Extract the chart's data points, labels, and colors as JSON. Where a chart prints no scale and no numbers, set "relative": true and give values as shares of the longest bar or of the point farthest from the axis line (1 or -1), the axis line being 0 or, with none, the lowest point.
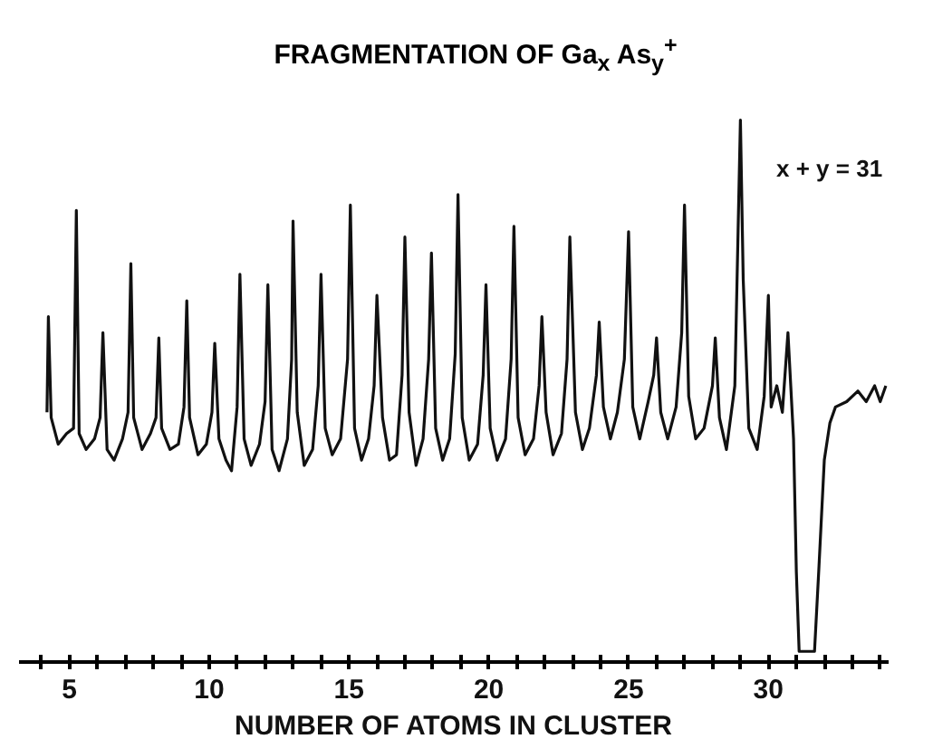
{
  "chart_data": {
    "type": "line",
    "title": "FRAGMENTATION OF Ga$_{x}$ As$_{y}$$^{+}$",
    "xlabel": "NUMBER OF ATOMS IN CLUSTER",
    "annotations": [
      "x + y = 31"
    ],
    "relative": true,
    "grid": false,
    "marker": "none",
    "line_style": "solid",
    "xlim": [
      3.2,
      34.3
    ],
    "xticks": [
      {
        "value": 4,
        "label": null
      },
      5,
      {
        "value": 6,
        "label": null
      },
      {
        "value": 7,
        "label": null
      },
      {
        "value": 8,
        "label": null
      },
      {
        "value": 9,
        "label": null
      },
      10,
      {
        "value": 11,
        "label": null
      },
      {
        "value": 12,
        "label": null
      },
      {
        "value": 13,
        "label": null
      },
      {
        "value": 14,
        "label": null
      },
      15,
      {
        "value": 16,
        "label": null
      },
      {
        "value": 17,
        "label": null
      },
      {
        "value": 18,
        "label": null
      },
      {
        "value": 19,
        "label": null
      },
      20,
      {
        "value": 21,
        "label": null
      },
      {
        "value": 22,
        "label": null
      },
      {
        "value": 23,
        "label": null
      },
      {
        "value": 24,
        "label": null
      },
      25,
      {
        "value": 26,
        "label": null
      },
      {
        "value": 27,
        "label": null
      },
      {
        "value": 28,
        "label": null
      },
      {
        "value": 29,
        "label": null
      },
      30,
      {
        "value": 31,
        "label": null
      },
      {
        "value": 32,
        "label": null
      },
      {
        "value": 33,
        "label": null
      },
      {
        "value": 34,
        "label": null
      }
    ],
    "series": [
      {
        "color": "#111111",
        "x": [
          4.2,
          4.25,
          4.35,
          4.6,
          4.9,
          5.15,
          5.25,
          5.35,
          5.6,
          5.9,
          6.1,
          6.2,
          6.35,
          6.6,
          6.9,
          7.1,
          7.2,
          7.3,
          7.6,
          7.9,
          8.1,
          8.2,
          8.3,
          8.6,
          8.9,
          9.1,
          9.2,
          9.3,
          9.6,
          9.9,
          10.1,
          10.2,
          10.35,
          10.6,
          10.8,
          11.0,
          11.1,
          11.25,
          11.5,
          11.8,
          12.0,
          12.1,
          12.25,
          12.5,
          12.8,
          12.95,
          13.0,
          13.15,
          13.4,
          13.7,
          13.9,
          14.0,
          14.15,
          14.4,
          14.7,
          14.95,
          15.05,
          15.2,
          15.45,
          15.7,
          15.9,
          16.0,
          16.2,
          16.45,
          16.7,
          16.9,
          17.0,
          17.15,
          17.4,
          17.65,
          17.85,
          17.95,
          18.1,
          18.35,
          18.6,
          18.8,
          18.9,
          19.05,
          19.3,
          19.6,
          19.8,
          19.9,
          20.05,
          20.3,
          20.6,
          20.8,
          20.9,
          21.05,
          21.3,
          21.6,
          21.8,
          21.9,
          22.05,
          22.3,
          22.6,
          22.8,
          22.9,
          23.1,
          23.35,
          23.6,
          23.85,
          23.95,
          24.1,
          24.35,
          24.6,
          24.85,
          25.0,
          25.15,
          25.4,
          25.7,
          25.9,
          26.0,
          26.15,
          26.4,
          26.7,
          26.9,
          27.0,
          27.15,
          27.4,
          27.7,
          28.0,
          28.1,
          28.25,
          28.5,
          28.8,
          28.9,
          29.0,
          29.1,
          29.3,
          29.6,
          29.85,
          30.0,
          30.1,
          30.3,
          30.5,
          30.7,
          30.8,
          30.9,
          31.0,
          31.1,
          31.65,
          31.8,
          32.0,
          32.2,
          32.4,
          32.8,
          33.2,
          33.5,
          33.8,
          34.0,
          34.2
        ],
        "values": [
          0.45,
          0.63,
          0.44,
          0.39,
          0.41,
          0.42,
          0.83,
          0.41,
          0.38,
          0.4,
          0.44,
          0.6,
          0.38,
          0.36,
          0.4,
          0.45,
          0.73,
          0.44,
          0.38,
          0.41,
          0.44,
          0.59,
          0.42,
          0.38,
          0.39,
          0.46,
          0.66,
          0.44,
          0.37,
          0.39,
          0.45,
          0.58,
          0.4,
          0.36,
          0.34,
          0.46,
          0.71,
          0.4,
          0.35,
          0.39,
          0.47,
          0.69,
          0.38,
          0.34,
          0.4,
          0.55,
          0.81,
          0.45,
          0.35,
          0.38,
          0.5,
          0.71,
          0.42,
          0.37,
          0.4,
          0.55,
          0.84,
          0.42,
          0.36,
          0.4,
          0.5,
          0.67,
          0.44,
          0.36,
          0.37,
          0.52,
          0.78,
          0.45,
          0.35,
          0.4,
          0.55,
          0.75,
          0.42,
          0.36,
          0.4,
          0.56,
          0.86,
          0.44,
          0.36,
          0.39,
          0.52,
          0.69,
          0.42,
          0.36,
          0.4,
          0.55,
          0.8,
          0.44,
          0.37,
          0.4,
          0.5,
          0.63,
          0.45,
          0.37,
          0.41,
          0.55,
          0.78,
          0.45,
          0.38,
          0.42,
          0.52,
          0.62,
          0.46,
          0.4,
          0.45,
          0.55,
          0.79,
          0.46,
          0.4,
          0.47,
          0.52,
          0.59,
          0.45,
          0.4,
          0.46,
          0.6,
          0.84,
          0.48,
          0.4,
          0.42,
          0.5,
          0.59,
          0.44,
          0.38,
          0.5,
          0.75,
          1.0,
          0.7,
          0.42,
          0.38,
          0.48,
          0.67,
          0.46,
          0.5,
          0.45,
          0.6,
          0.5,
          0.4,
          0.15,
          0,
          0,
          0.15,
          0.36,
          0.43,
          0.46,
          0.47,
          0.49,
          0.47,
          0.5,
          0.47,
          0.5
        ]
      }
    ]
  }
}
